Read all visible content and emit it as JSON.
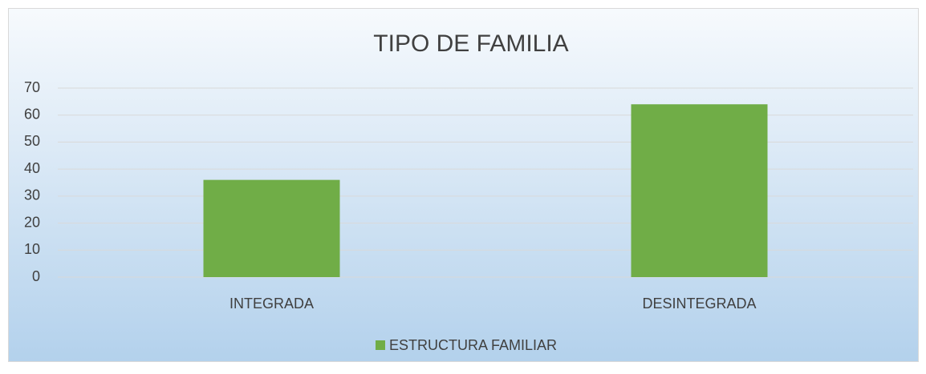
{
  "chart_data": {
    "type": "bar",
    "title": "TIPO DE FAMILIA",
    "categories": [
      "INTEGRADA",
      "DESINTEGRADA"
    ],
    "series": [
      {
        "name": "ESTRUCTURA FAMILIAR",
        "color": "#70ad47",
        "values": [
          36,
          64
        ]
      }
    ],
    "ylim": [
      0,
      70
    ],
    "yticks": [
      0,
      10,
      20,
      30,
      40,
      50,
      60,
      70
    ],
    "grid": true,
    "legend": "bottom"
  }
}
